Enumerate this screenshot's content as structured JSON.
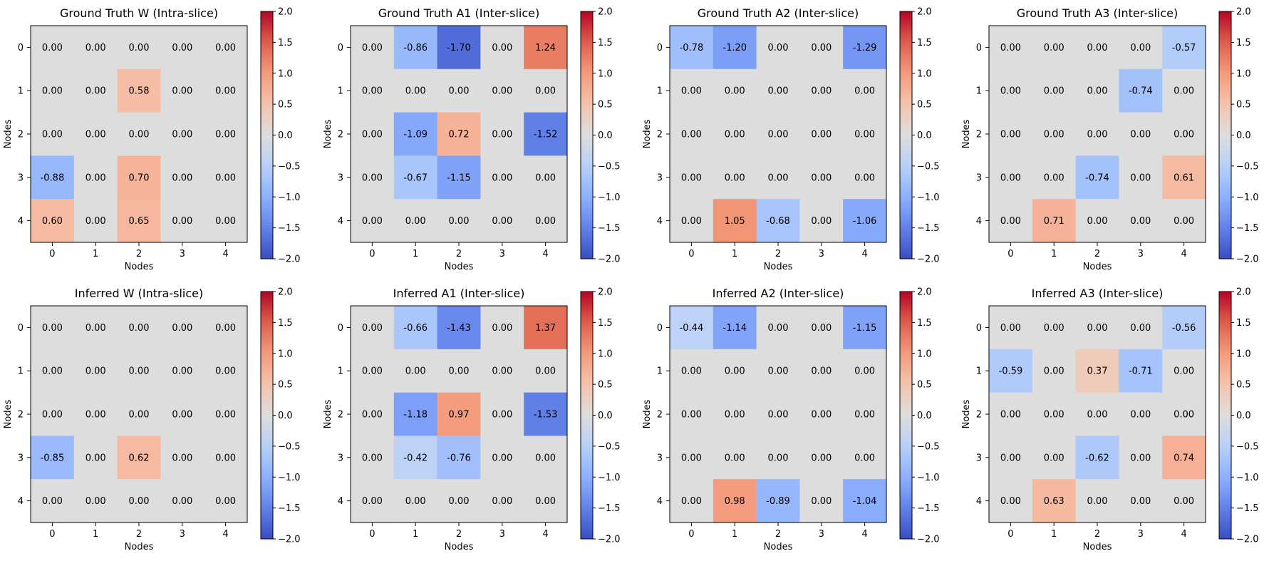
{
  "chart_data": [
    {
      "type": "heatmap",
      "title": "Ground Truth W (Intra-slice)",
      "xlabel": "Nodes",
      "ylabel": "Nodes",
      "x_ticks": [
        "0",
        "1",
        "2",
        "3",
        "4"
      ],
      "y_ticks": [
        "0",
        "1",
        "2",
        "3",
        "4"
      ],
      "vmin": -2.0,
      "vmax": 2.0,
      "colormap": "coolwarm",
      "colorbar_ticks": [
        "2.0",
        "1.5",
        "1.0",
        "0.5",
        "0.0",
        "−0.5",
        "−1.0",
        "−1.5",
        "−2.0"
      ],
      "matrix": [
        [
          0.0,
          0.0,
          0.0,
          0.0,
          0.0
        ],
        [
          0.0,
          0.0,
          0.58,
          0.0,
          0.0
        ],
        [
          0.0,
          0.0,
          0.0,
          0.0,
          0.0
        ],
        [
          -0.88,
          0.0,
          0.7,
          0.0,
          0.0
        ],
        [
          0.6,
          0.0,
          0.65,
          0.0,
          0.0
        ]
      ]
    },
    {
      "type": "heatmap",
      "title": "Ground Truth A1 (Inter-slice)",
      "xlabel": "Nodes",
      "ylabel": "Nodes",
      "x_ticks": [
        "0",
        "1",
        "2",
        "3",
        "4"
      ],
      "y_ticks": [
        "0",
        "1",
        "2",
        "3",
        "4"
      ],
      "vmin": -2.0,
      "vmax": 2.0,
      "colormap": "coolwarm",
      "colorbar_ticks": [
        "2.0",
        "1.5",
        "1.0",
        "0.5",
        "0.0",
        "−0.5",
        "−1.0",
        "−1.5",
        "−2.0"
      ],
      "matrix": [
        [
          0.0,
          -0.86,
          -1.7,
          0.0,
          1.24
        ],
        [
          0.0,
          0.0,
          0.0,
          0.0,
          0.0
        ],
        [
          0.0,
          -1.09,
          0.72,
          0.0,
          -1.52
        ],
        [
          0.0,
          -0.67,
          -1.15,
          0.0,
          0.0
        ],
        [
          0.0,
          0.0,
          0.0,
          0.0,
          0.0
        ]
      ]
    },
    {
      "type": "heatmap",
      "title": "Ground Truth A2 (Inter-slice)",
      "xlabel": "Nodes",
      "ylabel": "Nodes",
      "x_ticks": [
        "0",
        "1",
        "2",
        "3",
        "4"
      ],
      "y_ticks": [
        "0",
        "1",
        "2",
        "3",
        "4"
      ],
      "vmin": -2.0,
      "vmax": 2.0,
      "colormap": "coolwarm",
      "colorbar_ticks": [
        "2.0",
        "1.5",
        "1.0",
        "0.5",
        "0.0",
        "−0.5",
        "−1.0",
        "−1.5",
        "−2.0"
      ],
      "matrix": [
        [
          -0.78,
          -1.2,
          0.0,
          0.0,
          -1.29
        ],
        [
          0.0,
          0.0,
          0.0,
          0.0,
          0.0
        ],
        [
          0.0,
          0.0,
          0.0,
          0.0,
          0.0
        ],
        [
          0.0,
          0.0,
          0.0,
          0.0,
          0.0
        ],
        [
          0.0,
          1.05,
          -0.68,
          0.0,
          -1.06
        ]
      ]
    },
    {
      "type": "heatmap",
      "title": "Ground Truth A3 (Inter-slice)",
      "xlabel": "Nodes",
      "ylabel": "Nodes",
      "x_ticks": [
        "0",
        "1",
        "2",
        "3",
        "4"
      ],
      "y_ticks": [
        "0",
        "1",
        "2",
        "3",
        "4"
      ],
      "vmin": -2.0,
      "vmax": 2.0,
      "colormap": "coolwarm",
      "colorbar_ticks": [
        "2.0",
        "1.5",
        "1.0",
        "0.5",
        "0.0",
        "−0.5",
        "−1.0",
        "−1.5",
        "−2.0"
      ],
      "matrix": [
        [
          0.0,
          0.0,
          0.0,
          0.0,
          -0.57
        ],
        [
          0.0,
          0.0,
          0.0,
          -0.74,
          0.0
        ],
        [
          0.0,
          0.0,
          0.0,
          0.0,
          0.0
        ],
        [
          0.0,
          0.0,
          -0.74,
          0.0,
          0.61
        ],
        [
          0.0,
          0.71,
          0.0,
          0.0,
          0.0
        ]
      ]
    },
    {
      "type": "heatmap",
      "title": "Inferred W (Intra-slice)",
      "xlabel": "Nodes",
      "ylabel": "Nodes",
      "x_ticks": [
        "0",
        "1",
        "2",
        "3",
        "4"
      ],
      "y_ticks": [
        "0",
        "1",
        "2",
        "3",
        "4"
      ],
      "vmin": -2.0,
      "vmax": 2.0,
      "colormap": "coolwarm",
      "colorbar_ticks": [
        "2.0",
        "1.5",
        "1.0",
        "0.5",
        "0.0",
        "−0.5",
        "−1.0",
        "−1.5",
        "−2.0"
      ],
      "matrix": [
        [
          0.0,
          0.0,
          0.0,
          0.0,
          0.0
        ],
        [
          0.0,
          0.0,
          0.0,
          0.0,
          0.0
        ],
        [
          0.0,
          0.0,
          0.0,
          0.0,
          0.0
        ],
        [
          -0.85,
          0.0,
          0.62,
          0.0,
          0.0
        ],
        [
          0.0,
          0.0,
          0.0,
          0.0,
          0.0
        ]
      ]
    },
    {
      "type": "heatmap",
      "title": "Inferred A1 (Inter-slice)",
      "xlabel": "Nodes",
      "ylabel": "Nodes",
      "x_ticks": [
        "0",
        "1",
        "2",
        "3",
        "4"
      ],
      "y_ticks": [
        "0",
        "1",
        "2",
        "3",
        "4"
      ],
      "vmin": -2.0,
      "vmax": 2.0,
      "colormap": "coolwarm",
      "colorbar_ticks": [
        "2.0",
        "1.5",
        "1.0",
        "0.5",
        "0.0",
        "−0.5",
        "−1.0",
        "−1.5",
        "−2.0"
      ],
      "matrix": [
        [
          0.0,
          -0.66,
          -1.43,
          0.0,
          1.37
        ],
        [
          0.0,
          0.0,
          0.0,
          0.0,
          0.0
        ],
        [
          0.0,
          -1.18,
          0.97,
          0.0,
          -1.53
        ],
        [
          0.0,
          -0.42,
          -0.76,
          0.0,
          0.0
        ],
        [
          0.0,
          0.0,
          0.0,
          0.0,
          0.0
        ]
      ]
    },
    {
      "type": "heatmap",
      "title": "Inferred A2 (Inter-slice)",
      "xlabel": "Nodes",
      "ylabel": "Nodes",
      "x_ticks": [
        "0",
        "1",
        "2",
        "3",
        "4"
      ],
      "y_ticks": [
        "0",
        "1",
        "2",
        "3",
        "4"
      ],
      "vmin": -2.0,
      "vmax": 2.0,
      "colormap": "coolwarm",
      "colorbar_ticks": [
        "2.0",
        "1.5",
        "1.0",
        "0.5",
        "0.0",
        "−0.5",
        "−1.0",
        "−1.5",
        "−2.0"
      ],
      "matrix": [
        [
          -0.44,
          -1.14,
          0.0,
          0.0,
          -1.15
        ],
        [
          0.0,
          0.0,
          0.0,
          0.0,
          0.0
        ],
        [
          0.0,
          0.0,
          0.0,
          0.0,
          0.0
        ],
        [
          0.0,
          0.0,
          0.0,
          0.0,
          0.0
        ],
        [
          0.0,
          0.98,
          -0.89,
          0.0,
          -1.04
        ]
      ]
    },
    {
      "type": "heatmap",
      "title": "Inferred A3 (Inter-slice)",
      "xlabel": "Nodes",
      "ylabel": "Nodes",
      "x_ticks": [
        "0",
        "1",
        "2",
        "3",
        "4"
      ],
      "y_ticks": [
        "0",
        "1",
        "2",
        "3",
        "4"
      ],
      "vmin": -2.0,
      "vmax": 2.0,
      "colormap": "coolwarm",
      "colorbar_ticks": [
        "2.0",
        "1.5",
        "1.0",
        "0.5",
        "0.0",
        "−0.5",
        "−1.0",
        "−1.5",
        "−2.0"
      ],
      "matrix": [
        [
          0.0,
          0.0,
          0.0,
          0.0,
          -0.56
        ],
        [
          -0.59,
          0.0,
          0.37,
          -0.71,
          0.0
        ],
        [
          0.0,
          0.0,
          0.0,
          0.0,
          0.0
        ],
        [
          0.0,
          0.0,
          -0.62,
          0.0,
          0.74
        ],
        [
          0.0,
          0.63,
          0.0,
          0.0,
          0.0
        ]
      ]
    }
  ],
  "colors": {
    "cool_end": "#3b4cc0",
    "neutral": "#dddddd",
    "warm_end": "#b40426"
  }
}
